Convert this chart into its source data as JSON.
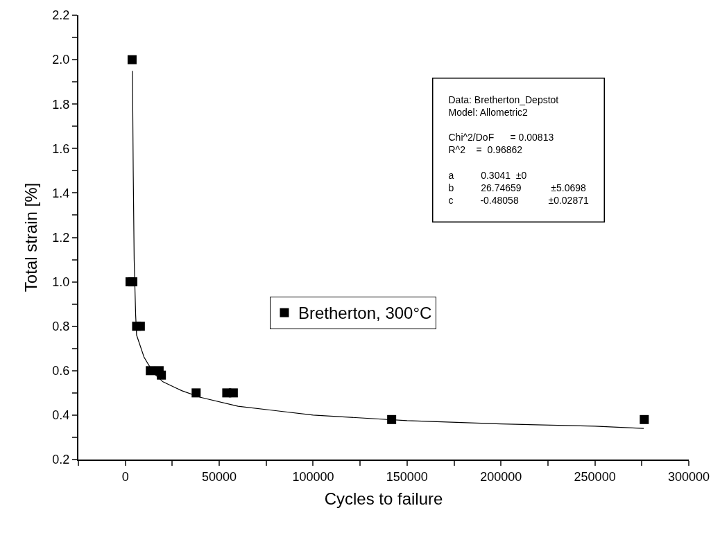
{
  "chart_data": {
    "type": "scatter",
    "xlabel": "Cycles to failure",
    "ylabel": "Total strain [%]",
    "series": [
      {
        "name": "Bretherton, 300°C",
        "color": "#000000",
        "marker": "square",
        "x": [
          3600,
          2500,
          4000,
          6000,
          8000,
          13300,
          18000,
          19200,
          37700,
          54000,
          57500,
          141800,
          276300
        ],
        "values": [
          2.0,
          1.0,
          1.0,
          0.8,
          0.8,
          0.6,
          0.6,
          0.58,
          0.5,
          0.5,
          0.5,
          0.38,
          0.38
        ]
      },
      {
        "color": "#000000",
        "type": "line",
        "marker": "none",
        "line_style": "solid",
        "x": [
          3800,
          4200,
          4700,
          5500,
          6000,
          10000,
          15000,
          20000,
          30000,
          40000,
          60000,
          80000,
          100000,
          150000,
          200000,
          250000,
          276000
        ],
        "values": [
          1.95,
          1.5,
          1.1,
          0.85,
          0.76,
          0.66,
          0.59,
          0.55,
          0.51,
          0.48,
          0.44,
          0.42,
          0.4,
          0.375,
          0.36,
          0.35,
          0.34
        ]
      }
    ],
    "xlim": [
      -25000,
      300000
    ],
    "xticks": [
      {
        "value": -25000,
        "label": null
      },
      0,
      {
        "value": 25000,
        "label": null
      },
      50000,
      {
        "value": 75000,
        "label": null
      },
      100000,
      {
        "value": 125000,
        "label": null
      },
      150000,
      {
        "value": 175000,
        "label": null
      },
      200000,
      {
        "value": 225000,
        "label": null
      },
      250000,
      {
        "value": 275000,
        "label": null
      },
      300000
    ],
    "ylim": [
      0.2,
      2.2
    ],
    "yticks": [
      {
        "value": 0.2,
        "label": "0.2"
      },
      {
        "value": 0.3,
        "label": null
      },
      {
        "value": 0.4,
        "label": "0.4"
      },
      {
        "value": 0.5,
        "label": null
      },
      {
        "value": 0.6,
        "label": "0.6"
      },
      {
        "value": 0.7,
        "label": null
      },
      {
        "value": 0.8,
        "label": "0.8"
      },
      {
        "value": 0.9,
        "label": null
      },
      {
        "value": 1.0,
        "label": "1.0"
      },
      {
        "value": 1.1,
        "label": null
      },
      {
        "value": 1.2,
        "label": "1.2"
      },
      {
        "value": 1.3,
        "label": null
      },
      {
        "value": 1.4,
        "label": "1.4"
      },
      {
        "value": 1.5,
        "label": null
      },
      {
        "value": 1.6,
        "label": "1.6"
      },
      {
        "value": 1.7,
        "label": null
      },
      {
        "value": 1.8,
        "label": "1.8"
      },
      {
        "value": 1.9,
        "label": null
      },
      {
        "value": 2.0,
        "label": "2.0"
      },
      {
        "value": 2.1,
        "label": null
      },
      {
        "value": 2.2,
        "label": "2.2"
      }
    ],
    "legend": "center",
    "annotations": [
      "Data: Bretherton_Depstot\nModel: Allometric2\n\nChi^2/DoF      = 0.00813\nR^2    =  0.96862\n\na          0.3041  ±0\nb          26.74659           ±5.0698\nc          -0.48058           ±0.02871"
    ]
  }
}
